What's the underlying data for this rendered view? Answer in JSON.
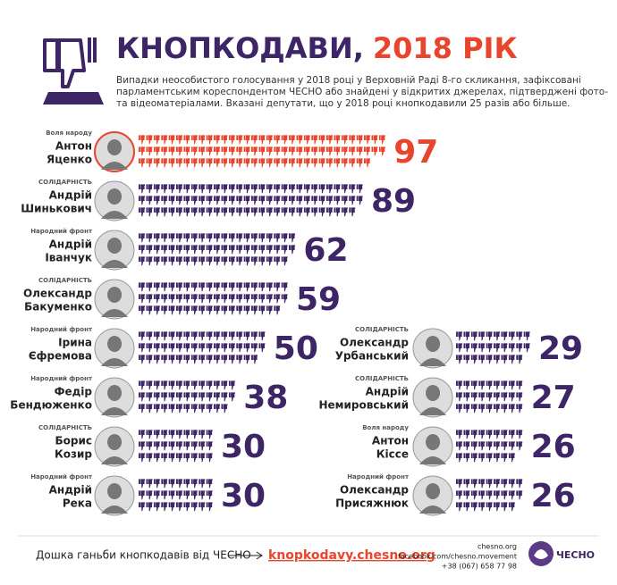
{
  "chart_data": {
    "type": "pictogram",
    "title": "КНОПКОДАВИ,",
    "title_year": "2018 РІК",
    "subtitle": [
      "Випадки неособистого голосування у 2018 році у Верховній Раді 8-го скликання, зафіксовані",
      "парламентським кореспондентом ЧЕСНО або знайдені у відкритих джерелах, підтверджені фото-",
      "та відеоматеріалами. Вказані депутати, що у 2018 році кнопкодавили 25 разів або більше."
    ],
    "color": "#3d2566",
    "highlight_color": "#e8452c",
    "rows": [
      {
        "first": "Антон",
        "last": "Яценко",
        "party": "Воля народу",
        "value": 97
      },
      {
        "first": "Андрій",
        "last": "Шинькович",
        "party": "СОЛІДАРНІСТЬ",
        "value": 89
      },
      {
        "first": "Андрій",
        "last": "Іванчук",
        "party": "Народний фронт",
        "value": 62
      },
      {
        "first": "Олександр",
        "last": "Бакуменко",
        "party": "СОЛІДАРНІСТЬ",
        "value": 59
      },
      {
        "first": "Ірина",
        "last": "Єфремова",
        "party": "Народний фронт",
        "value": 50
      },
      {
        "first": "Федір",
        "last": "Бендюженко",
        "party": "Народний фронт",
        "value": 38
      },
      {
        "first": "Борис",
        "last": "Козир",
        "party": "СОЛІДАРНІСТЬ",
        "value": 30
      },
      {
        "first": "Андрій",
        "last": "Река",
        "party": "Народний фронт",
        "value": 30
      },
      {
        "first": "Олександр",
        "last": "Урбанський",
        "party": "СОЛІДАРНІСТЬ",
        "value": 29
      },
      {
        "first": "Андрій",
        "last": "Немировський",
        "party": "СОЛІДАРНІСТЬ",
        "value": 27
      },
      {
        "first": "Антон",
        "last": "Кіссе",
        "party": "Воля народу",
        "value": 26
      },
      {
        "first": "Олександр",
        "last": "Присяжнюк",
        "party": "Народний фронт",
        "value": 26
      }
    ]
  },
  "footer": {
    "caption": "Дошка ганьби кнопкодавів від ЧЕСНО",
    "link": "knopkodavy.chesno.org",
    "site": "chesno.org",
    "facebook": "facebook.com/chesno.movement",
    "phone": "+38 (067) 658 77 98",
    "logo": "ЧЕСНО"
  }
}
